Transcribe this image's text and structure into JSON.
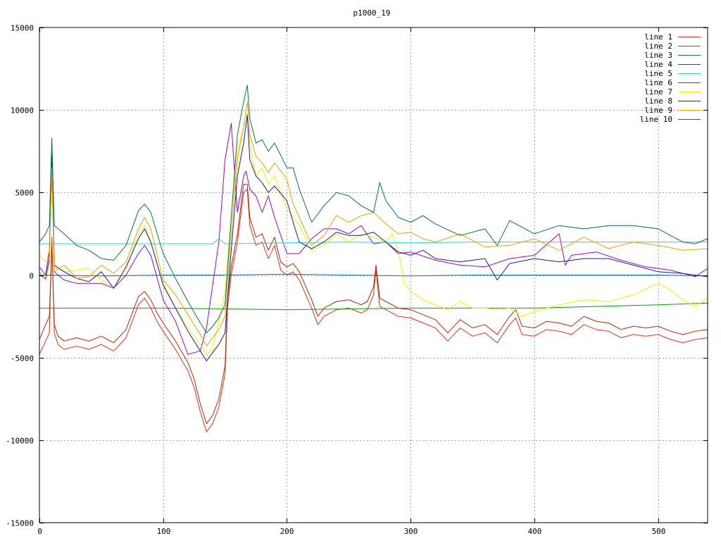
{
  "chart_data": {
    "type": "line",
    "title": "p1000_19",
    "xlabel": "",
    "ylabel": "",
    "xlim": [
      0,
      540
    ],
    "ylim": [
      -15000,
      15000
    ],
    "xticks": [
      0,
      100,
      200,
      300,
      400,
      500
    ],
    "yticks": [
      -15000,
      -10000,
      -5000,
      0,
      5000,
      10000,
      15000
    ],
    "grid": true,
    "legend_position": "top-right",
    "series": [
      {
        "name": "line 1",
        "color": "#e0301e",
        "x": [
          0,
          5,
          8,
          10,
          12,
          15,
          20,
          30,
          40,
          50,
          60,
          70,
          80,
          85,
          90,
          95,
          100,
          110,
          120,
          125,
          130,
          135,
          140,
          145,
          150,
          152,
          155,
          160,
          165,
          168,
          170,
          175,
          180,
          185,
          190,
          195,
          200,
          205,
          210,
          220,
          225,
          230,
          240,
          250,
          260,
          265,
          270,
          272,
          275,
          280,
          290,
          300,
          320,
          330,
          340,
          350,
          360,
          370,
          380,
          385,
          390,
          400,
          410,
          420,
          430,
          440,
          450,
          460,
          470,
          480,
          490,
          500,
          510,
          520,
          530,
          540
        ],
        "y": [
          -4800,
          -4000,
          -3500,
          2300,
          -3500,
          -4200,
          -4500,
          -4300,
          -4500,
          -4200,
          -4600,
          -3800,
          -1800,
          -1400,
          -2000,
          -2800,
          -3400,
          -4500,
          -5800,
          -6800,
          -8300,
          -9500,
          -9000,
          -8000,
          -6000,
          -2000,
          0,
          2000,
          5000,
          5200,
          3000,
          1800,
          2000,
          1000,
          1800,
          300,
          0,
          200,
          -300,
          -2000,
          -3000,
          -2500,
          -2100,
          -2000,
          -2300,
          -2100,
          -1200,
          300,
          -1900,
          -2100,
          -2500,
          -2600,
          -3200,
          -4000,
          -3200,
          -3700,
          -3500,
          -4100,
          -3000,
          -2600,
          -3600,
          -3700,
          -3300,
          -3400,
          -3600,
          -3000,
          -3300,
          -3400,
          -3800,
          -3600,
          -3700,
          -3600,
          -3900,
          -4100,
          -3900,
          -3800
        ]
      },
      {
        "name": "line 2",
        "color": "#00a000",
        "x": [
          0,
          50,
          100,
          150,
          200,
          250,
          300,
          350,
          400,
          450,
          500,
          540
        ],
        "y": [
          -2000,
          -2000,
          -2000,
          -2050,
          -2100,
          -2050,
          -2000,
          -2000,
          -2000,
          -1900,
          -1800,
          -1700
        ]
      },
      {
        "name": "line 3",
        "color": "#0070b0",
        "x": [
          0,
          50,
          100,
          150,
          200,
          250,
          300,
          350,
          400,
          450,
          500,
          540
        ],
        "y": [
          0,
          -50,
          0,
          0,
          50,
          0,
          -50,
          0,
          0,
          0,
          0,
          -50
        ]
      },
      {
        "name": "line 4",
        "color": "#a000d0",
        "x": [
          0,
          5,
          8,
          10,
          12,
          20,
          30,
          40,
          50,
          60,
          70,
          80,
          85,
          90,
          100,
          110,
          120,
          130,
          135,
          145,
          150,
          155,
          160,
          165,
          167,
          170,
          175,
          180,
          185,
          190,
          200,
          210,
          220,
          230,
          240,
          250,
          260,
          270,
          280,
          290,
          300,
          320,
          340,
          360,
          380,
          400,
          420,
          425,
          430,
          450,
          470,
          490,
          510,
          530,
          540
        ],
        "y": [
          500,
          0,
          1500,
          6500,
          200,
          -300,
          -500,
          -500,
          -500,
          -800,
          0,
          1300,
          1800,
          1200,
          -1500,
          -2800,
          -4800,
          -4600,
          -3200,
          2000,
          7000,
          9200,
          3800,
          6000,
          6300,
          5200,
          4800,
          3800,
          4800,
          3500,
          1300,
          1300,
          2200,
          2800,
          2800,
          2500,
          3000,
          1900,
          2000,
          1300,
          1400,
          900,
          600,
          500,
          1000,
          1200,
          2500,
          600,
          1200,
          1400,
          900,
          500,
          300,
          -100,
          400
        ]
      },
      {
        "name": "line 5",
        "color": "#20d8d8",
        "x": [
          0,
          50,
          100,
          140,
          145,
          150,
          200,
          250,
          300,
          350,
          400,
          450,
          500,
          540
        ],
        "y": [
          1900,
          1900,
          1900,
          1900,
          2200,
          1900,
          1950,
          2000,
          1950,
          2000,
          2000,
          2000,
          2000,
          2000
        ]
      },
      {
        "name": "line 6",
        "color": "#b82800",
        "x": [
          0,
          5,
          8,
          10,
          12,
          15,
          20,
          30,
          40,
          50,
          60,
          70,
          80,
          85,
          90,
          95,
          100,
          110,
          120,
          125,
          130,
          135,
          140,
          145,
          150,
          152,
          155,
          160,
          165,
          168,
          170,
          175,
          180,
          185,
          190,
          195,
          200,
          205,
          210,
          220,
          225,
          230,
          240,
          250,
          260,
          265,
          270,
          272,
          275,
          280,
          290,
          300,
          320,
          330,
          340,
          350,
          360,
          370,
          380,
          385,
          390,
          400,
          410,
          420,
          430,
          440,
          450,
          460,
          470,
          480,
          490,
          500,
          510,
          520,
          530,
          540
        ],
        "y": [
          -3900,
          -3000,
          -2500,
          1800,
          -3000,
          -3700,
          -4000,
          -3800,
          -4000,
          -3700,
          -4100,
          -3300,
          -1300,
          -1000,
          -1500,
          -2300,
          -2900,
          -4000,
          -5300,
          -6300,
          -7800,
          -9000,
          -8500,
          -7500,
          -5500,
          -1500,
          500,
          2500,
          5500,
          5500,
          3500,
          2300,
          2500,
          1500,
          2300,
          800,
          500,
          700,
          200,
          -1500,
          -2500,
          -2000,
          -1600,
          -1500,
          -1800,
          -1600,
          -700,
          600,
          -1400,
          -1600,
          -2000,
          -2100,
          -2700,
          -3500,
          -2700,
          -3200,
          -3000,
          -3600,
          -2500,
          -2100,
          -3100,
          -3200,
          -2800,
          -2900,
          -3100,
          -2500,
          -2800,
          -2900,
          -3300,
          -3100,
          -3200,
          -3100,
          -3400,
          -3600,
          -3400,
          -3300
        ]
      },
      {
        "name": "line 7",
        "color": "#f0f000",
        "x": [
          0,
          5,
          8,
          10,
          12,
          20,
          30,
          40,
          50,
          60,
          70,
          80,
          85,
          90,
          100,
          110,
          120,
          130,
          135,
          140,
          150,
          155,
          160,
          165,
          168,
          170,
          175,
          180,
          185,
          190,
          200,
          210,
          220,
          230,
          240,
          250,
          260,
          270,
          280,
          285,
          290,
          295,
          300,
          310,
          320,
          330,
          340,
          350,
          360,
          370,
          380,
          390,
          400,
          420,
          440,
          460,
          480,
          500,
          510,
          520,
          530,
          540
        ],
        "y": [
          1200,
          800,
          1500,
          6800,
          500,
          200,
          300,
          400,
          -300,
          -800,
          300,
          2500,
          3000,
          2000,
          -500,
          -2000,
          -3200,
          -4200,
          -4800,
          -4500,
          -1000,
          3500,
          7500,
          9000,
          9500,
          8000,
          6000,
          6500,
          5500,
          6000,
          4000,
          3000,
          1500,
          1800,
          2500,
          2000,
          2500,
          2300,
          2000,
          2500,
          1500,
          -500,
          -1000,
          -1500,
          -1800,
          -2100,
          -1600,
          -2000,
          -2000,
          -2100,
          -2000,
          -2500,
          -2200,
          -1800,
          -1500,
          -1600,
          -1200,
          -500,
          -900,
          -1500,
          -1900,
          -1400
        ]
      },
      {
        "name": "line 8",
        "color": "#1020a0",
        "x": [
          0,
          5,
          8,
          10,
          12,
          20,
          30,
          40,
          50,
          60,
          70,
          80,
          85,
          90,
          100,
          110,
          120,
          130,
          135,
          140,
          145,
          150,
          155,
          160,
          165,
          168,
          170,
          175,
          180,
          185,
          190,
          200,
          205,
          210,
          220,
          230,
          240,
          250,
          260,
          270,
          280,
          290,
          300,
          310,
          320,
          340,
          360,
          370,
          380,
          400,
          420,
          440,
          460,
          480,
          500,
          520,
          540
        ],
        "y": [
          0,
          -200,
          1000,
          7300,
          600,
          200,
          -200,
          -400,
          200,
          -800,
          500,
          2200,
          2800,
          2000,
          -600,
          -2000,
          -3400,
          -4600,
          -5200,
          -4700,
          -4200,
          -3500,
          1500,
          6000,
          8000,
          9700,
          7000,
          6000,
          5600,
          5000,
          5400,
          4500,
          3200,
          2000,
          1600,
          2000,
          2600,
          2400,
          2400,
          2600,
          2000,
          1400,
          1200,
          1500,
          1000,
          800,
          1000,
          -300,
          700,
          1000,
          800,
          1000,
          1000,
          600,
          200,
          100,
          -100
        ]
      },
      {
        "name": "line 9",
        "color": "#f0a000",
        "x": [
          0,
          5,
          8,
          10,
          12,
          20,
          30,
          40,
          50,
          60,
          70,
          80,
          85,
          90,
          100,
          110,
          120,
          130,
          135,
          140,
          145,
          150,
          155,
          160,
          165,
          168,
          170,
          175,
          180,
          185,
          190,
          200,
          205,
          210,
          220,
          230,
          240,
          250,
          260,
          270,
          280,
          290,
          300,
          310,
          320,
          340,
          360,
          380,
          400,
          420,
          440,
          460,
          480,
          500,
          520,
          540
        ],
        "y": [
          200,
          -300,
          800,
          6500,
          200,
          600,
          -200,
          -100,
          600,
          100,
          800,
          2800,
          3500,
          2800,
          -300,
          -1200,
          -2400,
          -3600,
          -4300,
          -3800,
          -3300,
          -2500,
          2500,
          7000,
          9000,
          10500,
          8500,
          7200,
          6800,
          6200,
          6800,
          5800,
          4300,
          3500,
          1800,
          2400,
          3600,
          3200,
          3600,
          3800,
          3100,
          2500,
          2600,
          2200,
          2000,
          2500,
          1700,
          1800,
          2200,
          1500,
          2300,
          1600,
          2000,
          1800,
          1500,
          1600
        ]
      },
      {
        "name": "line 10",
        "color": "#007840",
        "x": [
          0,
          5,
          8,
          10,
          12,
          20,
          30,
          40,
          50,
          60,
          70,
          80,
          85,
          90,
          100,
          110,
          120,
          130,
          135,
          140,
          145,
          150,
          155,
          160,
          165,
          168,
          170,
          175,
          180,
          185,
          190,
          200,
          205,
          210,
          220,
          230,
          240,
          250,
          260,
          270,
          275,
          280,
          290,
          300,
          310,
          320,
          340,
          360,
          370,
          380,
          400,
          420,
          440,
          460,
          480,
          500,
          520,
          530,
          540
        ],
        "y": [
          2000,
          2500,
          3000,
          8300,
          3000,
          2500,
          1800,
          1500,
          1000,
          900,
          1800,
          3900,
          4300,
          3800,
          1300,
          -200,
          -1600,
          -2900,
          -3500,
          -3100,
          -2600,
          -1800,
          3500,
          8500,
          10500,
          11500,
          9500,
          8000,
          8200,
          7500,
          8000,
          6500,
          6500,
          5200,
          3200,
          4200,
          5000,
          4800,
          4200,
          3800,
          5600,
          4500,
          3500,
          3200,
          3600,
          3100,
          2400,
          2800,
          1800,
          3300,
          2500,
          3000,
          2800,
          3000,
          3000,
          2800,
          2000,
          1900,
          2200
        ]
      }
    ]
  }
}
